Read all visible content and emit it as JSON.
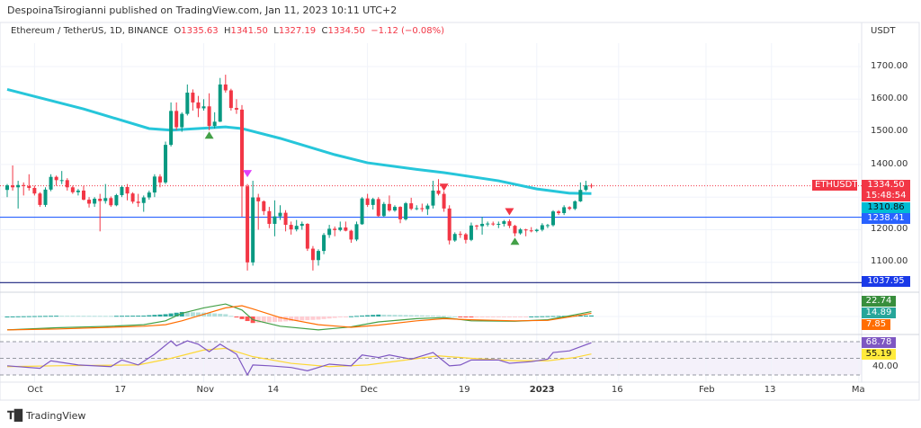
{
  "header": {
    "publish_line": "DespoinaTsirogianni published on TradingView.com, Jan 11, 2023 10:11 UTC+2"
  },
  "legend": {
    "symbol": "Ethereum / TetherUS, 1D, BINANCE",
    "open_label": "O",
    "open": "1335.63",
    "high_label": "H",
    "high": "1341.50",
    "low_label": "L",
    "low": "1327.19",
    "close_label": "C",
    "close": "1334.50",
    "change": "−1.12 (−0.08%)"
  },
  "price_axis": {
    "currency": "USDT",
    "ticks": [
      "1700.00",
      "1600.00",
      "1500.00",
      "1400.00",
      "1200.00",
      "1100.00"
    ],
    "rsi_tick": "40.00"
  },
  "tags": {
    "symbol": "ETHUSDT",
    "last_price": "1334.50",
    "countdown": "15:48:54",
    "sma": "1310.86",
    "line1": "1238.41",
    "line2": "1037.95",
    "macd": "22.74",
    "signal": "14.89",
    "hist": "7.85",
    "rsi": "68.78",
    "rsi_ma": "55.19"
  },
  "time_axis": {
    "ticks": [
      {
        "label": "Oct",
        "date": "2022-10-01"
      },
      {
        "label": "17",
        "date": "2022-10-17"
      },
      {
        "label": "Nov",
        "date": "2022-11-01"
      },
      {
        "label": "14",
        "date": "2022-11-14"
      },
      {
        "label": "Dec",
        "date": "2022-12-01"
      },
      {
        "label": "19",
        "date": "2022-12-19"
      },
      {
        "label": "2023",
        "date": "2023-01-01"
      },
      {
        "label": "16",
        "date": "2023-01-16"
      },
      {
        "label": "Feb",
        "date": "2023-02-01"
      },
      {
        "label": "13",
        "date": "2023-02-13"
      },
      {
        "label": "Ma",
        "date": "2023-03-01"
      }
    ]
  },
  "footer": {
    "brand": "TradingView"
  },
  "colors": {
    "up": "#089981",
    "down": "#f23645",
    "sma": "#26c6da",
    "line1": "#2962ff",
    "line2": "#1a237e",
    "macd": "#43a047",
    "signal": "#ff6d00",
    "rsi": "#7e57c2",
    "rsi_ma": "#fdd835"
  },
  "chart_data": {
    "type": "candlestick",
    "price_range": [
      1000,
      1750
    ],
    "start_date": "2022-09-26",
    "candles_ohlc": [
      [
        1322,
        1340,
        1300,
        1336
      ],
      [
        1336,
        1397,
        1320,
        1330
      ],
      [
        1330,
        1350,
        1265,
        1337
      ],
      [
        1337,
        1345,
        1305,
        1334
      ],
      [
        1334,
        1370,
        1320,
        1328
      ],
      [
        1328,
        1335,
        1305,
        1311
      ],
      [
        1311,
        1315,
        1270,
        1276
      ],
      [
        1276,
        1330,
        1270,
        1323
      ],
      [
        1323,
        1370,
        1318,
        1362
      ],
      [
        1362,
        1366,
        1335,
        1352
      ],
      [
        1352,
        1380,
        1340,
        1352
      ],
      [
        1352,
        1358,
        1320,
        1330
      ],
      [
        1330,
        1335,
        1310,
        1315
      ],
      [
        1315,
        1325,
        1305,
        1320
      ],
      [
        1320,
        1335,
        1290,
        1292
      ],
      [
        1292,
        1300,
        1268,
        1280
      ],
      [
        1280,
        1300,
        1270,
        1295
      ],
      [
        1295,
        1310,
        1195,
        1288
      ],
      [
        1288,
        1340,
        1280,
        1297
      ],
      [
        1297,
        1302,
        1270,
        1275
      ],
      [
        1275,
        1310,
        1272,
        1306
      ],
      [
        1306,
        1335,
        1300,
        1331
      ],
      [
        1331,
        1340,
        1290,
        1311
      ],
      [
        1311,
        1315,
        1280,
        1286
      ],
      [
        1286,
        1310,
        1270,
        1282
      ],
      [
        1282,
        1305,
        1255,
        1299
      ],
      [
        1299,
        1320,
        1292,
        1314
      ],
      [
        1314,
        1370,
        1300,
        1363
      ],
      [
        1363,
        1370,
        1330,
        1345
      ],
      [
        1345,
        1470,
        1340,
        1460
      ],
      [
        1460,
        1590,
        1455,
        1564
      ],
      [
        1564,
        1590,
        1505,
        1514
      ],
      [
        1514,
        1560,
        1500,
        1555
      ],
      [
        1555,
        1645,
        1550,
        1620
      ],
      [
        1620,
        1630,
        1565,
        1590
      ],
      [
        1590,
        1610,
        1545,
        1572
      ],
      [
        1572,
        1600,
        1565,
        1578
      ],
      [
        1578,
        1618,
        1505,
        1518
      ],
      [
        1518,
        1560,
        1510,
        1531
      ],
      [
        1531,
        1665,
        1530,
        1645
      ],
      [
        1645,
        1675,
        1620,
        1627
      ],
      [
        1627,
        1632,
        1565,
        1573
      ],
      [
        1573,
        1600,
        1555,
        1568
      ],
      [
        1568,
        1582,
        1240,
        1333
      ],
      [
        1333,
        1340,
        1075,
        1100
      ],
      [
        1100,
        1350,
        1090,
        1299
      ],
      [
        1299,
        1310,
        1200,
        1287
      ],
      [
        1287,
        1290,
        1245,
        1257
      ],
      [
        1257,
        1270,
        1205,
        1218
      ],
      [
        1218,
        1290,
        1180,
        1241
      ],
      [
        1241,
        1275,
        1230,
        1252
      ],
      [
        1252,
        1260,
        1195,
        1215
      ],
      [
        1215,
        1225,
        1185,
        1201
      ],
      [
        1201,
        1230,
        1195,
        1212
      ],
      [
        1212,
        1225,
        1200,
        1218
      ],
      [
        1218,
        1220,
        1135,
        1142
      ],
      [
        1142,
        1150,
        1075,
        1107
      ],
      [
        1107,
        1140,
        1090,
        1135
      ],
      [
        1135,
        1190,
        1125,
        1184
      ],
      [
        1184,
        1215,
        1175,
        1203
      ],
      [
        1203,
        1210,
        1180,
        1199
      ],
      [
        1199,
        1225,
        1195,
        1207
      ],
      [
        1207,
        1225,
        1195,
        1197
      ],
      [
        1197,
        1200,
        1160,
        1170
      ],
      [
        1170,
        1225,
        1165,
        1217
      ],
      [
        1217,
        1300,
        1215,
        1296
      ],
      [
        1296,
        1310,
        1270,
        1276
      ],
      [
        1276,
        1298,
        1262,
        1294
      ],
      [
        1294,
        1300,
        1240,
        1242
      ],
      [
        1242,
        1285,
        1240,
        1279
      ],
      [
        1279,
        1305,
        1255,
        1259
      ],
      [
        1259,
        1275,
        1255,
        1270
      ],
      [
        1270,
        1272,
        1220,
        1232
      ],
      [
        1232,
        1285,
        1228,
        1281
      ],
      [
        1281,
        1298,
        1260,
        1264
      ],
      [
        1264,
        1275,
        1260,
        1266
      ],
      [
        1266,
        1280,
        1255,
        1263
      ],
      [
        1263,
        1280,
        1245,
        1274
      ],
      [
        1274,
        1350,
        1265,
        1320
      ],
      [
        1320,
        1355,
        1305,
        1310
      ],
      [
        1310,
        1318,
        1255,
        1265
      ],
      [
        1265,
        1275,
        1155,
        1167
      ],
      [
        1167,
        1192,
        1163,
        1187
      ],
      [
        1187,
        1195,
        1175,
        1186
      ],
      [
        1186,
        1190,
        1158,
        1169
      ],
      [
        1169,
        1222,
        1165,
        1213
      ],
      [
        1213,
        1215,
        1200,
        1211
      ],
      [
        1211,
        1240,
        1185,
        1218
      ],
      [
        1218,
        1225,
        1210,
        1219
      ],
      [
        1219,
        1225,
        1212,
        1218
      ],
      [
        1218,
        1225,
        1205,
        1218
      ],
      [
        1218,
        1230,
        1210,
        1226
      ],
      [
        1226,
        1232,
        1205,
        1212
      ],
      [
        1212,
        1215,
        1180,
        1189
      ],
      [
        1189,
        1205,
        1185,
        1201
      ],
      [
        1201,
        1203,
        1180,
        1198
      ],
      [
        1198,
        1208,
        1192,
        1196
      ],
      [
        1196,
        1203,
        1192,
        1200
      ],
      [
        1200,
        1220,
        1195,
        1214
      ],
      [
        1214,
        1218,
        1205,
        1214
      ],
      [
        1214,
        1260,
        1210,
        1256
      ],
      [
        1256,
        1260,
        1245,
        1251
      ],
      [
        1251,
        1275,
        1245,
        1269
      ],
      [
        1269,
        1272,
        1260,
        1264
      ],
      [
        1264,
        1290,
        1260,
        1287
      ],
      [
        1287,
        1345,
        1285,
        1322
      ],
      [
        1322,
        1350,
        1318,
        1336
      ],
      [
        1335.63,
        1341.5,
        1327.19,
        1334.5
      ]
    ],
    "sma": [
      [
        "2022-09-26",
        1630
      ],
      [
        "2022-10-10",
        1570
      ],
      [
        "2022-10-22",
        1510
      ],
      [
        "2022-10-26",
        1505
      ],
      [
        "2022-11-05",
        1515
      ],
      [
        "2022-11-08",
        1510
      ],
      [
        "2022-11-15",
        1480
      ],
      [
        "2022-11-25",
        1430
      ],
      [
        "2022-12-01",
        1405
      ],
      [
        "2022-12-10",
        1385
      ],
      [
        "2022-12-15",
        1375
      ],
      [
        "2022-12-25",
        1350
      ],
      [
        "2023-01-01",
        1325
      ],
      [
        "2023-01-07",
        1312
      ],
      [
        "2023-01-11",
        1310.86
      ]
    ],
    "horizontal_lines": [
      {
        "price": 1238.41,
        "color": "#2962ff"
      },
      {
        "price": 1037.95,
        "color": "#1a237e"
      }
    ],
    "last_price_line": 1334.5,
    "signals": [
      {
        "date": "2022-11-02",
        "type": "up",
        "color": "#43a047",
        "price": 1490
      },
      {
        "date": "2022-11-09",
        "type": "down",
        "color": "#e040fb",
        "price": 1372
      },
      {
        "date": "2022-12-15",
        "type": "down",
        "color": "#f23645",
        "price": 1330
      },
      {
        "date": "2022-12-27",
        "type": "down",
        "color": "#f23645",
        "price": 1255
      },
      {
        "date": "2022-12-28",
        "type": "up",
        "color": "#43a047",
        "price": 1165
      }
    ],
    "macd": {
      "range": [
        -75,
        75
      ],
      "macd": [
        [
          "2022-09-26",
          -62
        ],
        [
          "2022-10-05",
          -52
        ],
        [
          "2022-10-15",
          -45
        ],
        [
          "2022-10-21",
          -38
        ],
        [
          "2022-10-25",
          -20
        ],
        [
          "2022-10-28",
          15
        ],
        [
          "2022-11-01",
          40
        ],
        [
          "2022-11-05",
          58
        ],
        [
          "2022-11-08",
          30
        ],
        [
          "2022-11-10",
          -15
        ],
        [
          "2022-11-15",
          -45
        ],
        [
          "2022-11-22",
          -62
        ],
        [
          "2022-11-28",
          -48
        ],
        [
          "2022-12-03",
          -25
        ],
        [
          "2022-12-10",
          -10
        ],
        [
          "2022-12-15",
          -5
        ],
        [
          "2022-12-20",
          -20
        ],
        [
          "2022-12-28",
          -22
        ],
        [
          "2023-01-03",
          -15
        ],
        [
          "2023-01-08",
          8
        ],
        [
          "2023-01-11",
          22.74
        ]
      ],
      "signal": [
        [
          "2022-09-26",
          -62
        ],
        [
          "2022-10-05",
          -58
        ],
        [
          "2022-10-15",
          -50
        ],
        [
          "2022-10-21",
          -45
        ],
        [
          "2022-10-25",
          -38
        ],
        [
          "2022-10-28",
          -20
        ],
        [
          "2022-11-01",
          10
        ],
        [
          "2022-11-05",
          40
        ],
        [
          "2022-11-08",
          50
        ],
        [
          "2022-11-10",
          35
        ],
        [
          "2022-11-15",
          -5
        ],
        [
          "2022-11-22",
          -38
        ],
        [
          "2022-11-28",
          -50
        ],
        [
          "2022-12-03",
          -40
        ],
        [
          "2022-12-10",
          -20
        ],
        [
          "2022-12-15",
          -10
        ],
        [
          "2022-12-20",
          -15
        ],
        [
          "2022-12-28",
          -20
        ],
        [
          "2023-01-03",
          -18
        ],
        [
          "2023-01-08",
          2
        ],
        [
          "2023-01-11",
          14.89
        ]
      ]
    },
    "rsi": {
      "levels": [
        70,
        50,
        30
      ],
      "rsi": [
        [
          "2022-09-26",
          41
        ],
        [
          "2022-10-02",
          38
        ],
        [
          "2022-10-04",
          47
        ],
        [
          "2022-10-09",
          42
        ],
        [
          "2022-10-15",
          40
        ],
        [
          "2022-10-17",
          48
        ],
        [
          "2022-10-20",
          42
        ],
        [
          "2022-10-23",
          55
        ],
        [
          "2022-10-26",
          71
        ],
        [
          "2022-10-27",
          65
        ],
        [
          "2022-10-29",
          71
        ],
        [
          "2022-10-31",
          67
        ],
        [
          "2022-11-02",
          58
        ],
        [
          "2022-11-04",
          67
        ],
        [
          "2022-11-07",
          55
        ],
        [
          "2022-11-09",
          30
        ],
        [
          "2022-11-10",
          42
        ],
        [
          "2022-11-13",
          41
        ],
        [
          "2022-11-17",
          39
        ],
        [
          "2022-11-20",
          35
        ],
        [
          "2022-11-24",
          43
        ],
        [
          "2022-11-28",
          41
        ],
        [
          "2022-11-30",
          54
        ],
        [
          "2022-12-03",
          51
        ],
        [
          "2022-12-05",
          54
        ],
        [
          "2022-12-09",
          49
        ],
        [
          "2022-12-13",
          57
        ],
        [
          "2022-12-16",
          41
        ],
        [
          "2022-12-18",
          42
        ],
        [
          "2022-12-20",
          48
        ],
        [
          "2022-12-25",
          48
        ],
        [
          "2022-12-27",
          44
        ],
        [
          "2022-12-31",
          46
        ],
        [
          "2023-01-03",
          49
        ],
        [
          "2023-01-04",
          57
        ],
        [
          "2023-01-07",
          59
        ],
        [
          "2023-01-11",
          68.78
        ]
      ],
      "ma": [
        [
          "2022-09-26",
          40
        ],
        [
          "2022-10-05",
          41
        ],
        [
          "2022-10-20",
          42
        ],
        [
          "2022-10-26",
          50
        ],
        [
          "2022-11-01",
          60
        ],
        [
          "2022-11-05",
          62
        ],
        [
          "2022-11-10",
          52
        ],
        [
          "2022-11-17",
          44
        ],
        [
          "2022-11-24",
          40
        ],
        [
          "2022-12-01",
          42
        ],
        [
          "2022-12-08",
          48
        ],
        [
          "2022-12-14",
          53
        ],
        [
          "2022-12-20",
          50
        ],
        [
          "2022-12-28",
          47
        ],
        [
          "2023-01-03",
          47
        ],
        [
          "2023-01-08",
          51
        ],
        [
          "2023-01-11",
          55.19
        ]
      ]
    }
  }
}
